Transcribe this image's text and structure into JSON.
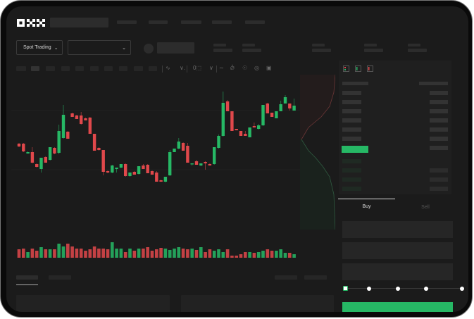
{
  "brand": {
    "logo_text": "OKX"
  },
  "colors": {
    "up": "#26b865",
    "down": "#e0484b",
    "accent": "#26b865",
    "screen_bg": "#1b1b1b",
    "panel_bg": "#1f1f1f",
    "placeholder": "#2c2c2c"
  },
  "market_bar": {
    "trade_mode": "Spot Trading",
    "trade_mode_icon": "chevron-down-icon",
    "pair_select_icon": "chevron-down-icon"
  },
  "toolbar": {
    "icons": [
      "line-icon",
      "indicator-icon",
      "crosshair-icon",
      "wave-icon",
      "ruler-icon",
      "camera-icon",
      "settings-icon",
      "fullscreen-icon"
    ]
  },
  "order_book": {
    "view_icons": [
      "book-both-icon",
      "book-bids-icon",
      "book-asks-icon"
    ]
  },
  "trade_panel": {
    "tabs": [
      {
        "label": "Buy",
        "active": true
      },
      {
        "label": "Sell",
        "active": false
      }
    ],
    "slider_steps": 5,
    "slider_value": 0
  },
  "chart_data": {
    "type": "candlestick",
    "ylim": [
      40,
      180
    ],
    "gridlines": true,
    "candles": [
      [
        97,
        98,
        92,
        93
      ],
      [
        97,
        98,
        85,
        86
      ],
      [
        83,
        86,
        83,
        85
      ],
      [
        85,
        92,
        69,
        70
      ],
      [
        68,
        69,
        63,
        64
      ],
      [
        61,
        77,
        56,
        77
      ],
      [
        78,
        79,
        70,
        70
      ],
      [
        74,
        92,
        73,
        92
      ],
      [
        91,
        92,
        82,
        83
      ],
      [
        84,
        124,
        82,
        115
      ],
      [
        105,
        152,
        104,
        138
      ],
      [
        114,
        115,
        104,
        104
      ],
      [
        140,
        141,
        135,
        135
      ],
      [
        137,
        138,
        132,
        132
      ],
      [
        137,
        142,
        124,
        125
      ],
      [
        133,
        134,
        130,
        130
      ],
      [
        134,
        135,
        111,
        111
      ],
      [
        111,
        111,
        87,
        87
      ],
      [
        91,
        92,
        87,
        88
      ],
      [
        88,
        88,
        52,
        57
      ],
      [
        58,
        59,
        55,
        56
      ],
      [
        56,
        67,
        55,
        66
      ],
      [
        61,
        63,
        56,
        63
      ],
      [
        63,
        68,
        62,
        68
      ],
      [
        68,
        69,
        50,
        51
      ],
      [
        51,
        56,
        50,
        56
      ],
      [
        57,
        58,
        53,
        53
      ],
      [
        54,
        65,
        53,
        65
      ],
      [
        66,
        68,
        61,
        61
      ],
      [
        67,
        68,
        55,
        55
      ],
      [
        58,
        59,
        53,
        53
      ],
      [
        56,
        58,
        43,
        43
      ],
      [
        45,
        46,
        43,
        43
      ],
      [
        43,
        50,
        42,
        50
      ],
      [
        52,
        88,
        51,
        85
      ],
      [
        85,
        90,
        85,
        90
      ],
      [
        90,
        105,
        89,
        100
      ],
      [
        98,
        99,
        87,
        87
      ],
      [
        94,
        98,
        70,
        70
      ],
      [
        68,
        69,
        66,
        69
      ],
      [
        72,
        74,
        67,
        67
      ],
      [
        66,
        69,
        65,
        69
      ],
      [
        71,
        72,
        60,
        69
      ],
      [
        68,
        69,
        66,
        66
      ],
      [
        68,
        92,
        67,
        92
      ],
      [
        91,
        110,
        90,
        108
      ],
      [
        108,
        171,
        107,
        155
      ],
      [
        157,
        159,
        143,
        143
      ],
      [
        143,
        143,
        115,
        115
      ],
      [
        118,
        118,
        116,
        116
      ],
      [
        115,
        115,
        108,
        108
      ],
      [
        111,
        115,
        108,
        108
      ],
      [
        106,
        120,
        106,
        120
      ],
      [
        122,
        127,
        120,
        120
      ],
      [
        118,
        125,
        117,
        123
      ],
      [
        123,
        152,
        122,
        152
      ],
      [
        154,
        155,
        140,
        140
      ],
      [
        141,
        141,
        135,
        135
      ],
      [
        133,
        143,
        133,
        143
      ],
      [
        143,
        158,
        143,
        153
      ],
      [
        154,
        166,
        154,
        163
      ],
      [
        154,
        154,
        144,
        147
      ],
      [
        144,
        161,
        144,
        151
      ]
    ],
    "volumes": [
      12,
      13,
      8,
      13,
      10,
      15,
      12,
      12,
      12,
      20,
      16,
      20,
      16,
      13,
      13,
      10,
      12,
      16,
      13,
      13,
      12,
      22,
      13,
      13,
      8,
      13,
      10,
      13,
      13,
      15,
      10,
      12,
      14,
      13,
      11,
      13,
      15,
      13,
      12,
      13,
      11,
      15,
      8,
      12,
      10,
      12,
      8,
      12,
      3,
      3,
      5,
      8,
      8,
      7,
      8,
      10,
      12,
      10,
      10,
      12,
      7,
      7,
      5
    ]
  }
}
